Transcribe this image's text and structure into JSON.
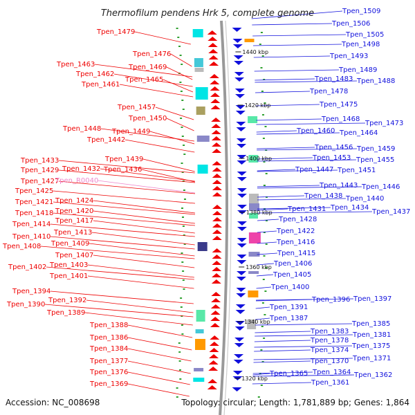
{
  "title": "Thermofilum pendens Hrk 5, complete genome",
  "accession": "Accession: NC_008698",
  "topology": "Topology: circular; Length: 1,781,889 bp; Genes: 1,864",
  "colors": {
    "reverse_strand": "#ee0000",
    "forward_strand": "#1111dd",
    "rna_label": "#ee88cc",
    "backbone": "#999999",
    "orf": "#2fa02f"
  },
  "ticks": [
    "1440 kbp",
    "1420 kbp",
    "1400 kbp",
    "1380 kbp",
    "1360 kbp",
    "1340 kbp",
    "1320 kbp"
  ],
  "left_labels": [
    "Tpen_1479",
    "Tpen_1476",
    "Tpen_1469",
    "Tpen_1463",
    "Tpen_1462",
    "Tpen_1465",
    "Tpen_1461",
    "Tpen_1457",
    "Tpen_1450",
    "Tpen_1448",
    "Tpen_1449",
    "Tpen_1442",
    "Tpen_1439",
    "Tpen_1433",
    "Tpen_1429",
    "Tpen_1432",
    "Tpen_1436",
    "Tpen_1427",
    "Tpen_R0040",
    "Tpen_1425",
    "Tpen_1421",
    "Tpen_1424",
    "Tpen_1418",
    "Tpen_1420",
    "Tpen_1414",
    "Tpen_1417",
    "Tpen_1413",
    "Tpen_1410",
    "Tpen_1409",
    "Tpen_1408",
    "Tpen_1407",
    "Tpen_1402",
    "Tpen_1403",
    "Tpen_1401",
    "Tpen_1394",
    "Tpen_1392",
    "Tpen_1390",
    "Tpen_1389",
    "Tpen_1388",
    "Tpen_1386",
    "Tpen_1384",
    "Tpen_1377",
    "Tpen_1376",
    "Tpen_1369"
  ],
  "right_labels": [
    "Tpen_1509",
    "Tpen_1506",
    "Tpen_1505",
    "Tpen_1498",
    "Tpen_1493",
    "Tpen_1489",
    "Tpen_1483",
    "Tpen_1488",
    "Tpen_1478",
    "Tpen_1475",
    "Tpen_1468",
    "Tpen_1473",
    "Tpen_1460",
    "Tpen_1464",
    "Tpen_1456",
    "Tpen_1459",
    "Tpen_1453",
    "Tpen_1455",
    "Tpen_1447",
    "Tpen_1451",
    "Tpen_1443",
    "Tpen_1446",
    "Tpen_1438",
    "Tpen_1440",
    "Tpen_1431",
    "Tpen_1434",
    "Tpen_1437",
    "Tpen_1428",
    "Tpen_1422",
    "Tpen_1416",
    "Tpen_1415",
    "Tpen_1406",
    "Tpen_1405",
    "Tpen_1400",
    "Tpen_1396",
    "Tpen_1397",
    "Tpen_1391",
    "Tpen_1387",
    "Tpen_1385",
    "Tpen_1383",
    "Tpen_1381",
    "Tpen_1378",
    "Tpen_1375",
    "Tpen_1374",
    "Tpen_1371",
    "Tpen_1370",
    "Tpen_1365",
    "Tpen_1364",
    "Tpen_1362",
    "Tpen_1361"
  ]
}
